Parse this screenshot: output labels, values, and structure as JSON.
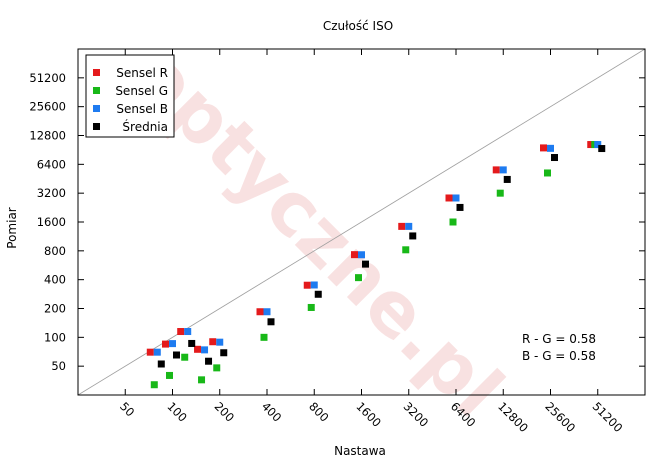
{
  "chart_data": {
    "type": "scatter",
    "title": "Czułość ISO",
    "xlabel": "Nastawa",
    "ylabel": "Pomiar",
    "x_scale": "log2",
    "y_scale": "log2",
    "xlim": [
      25,
      102400
    ],
    "ylim": [
      25,
      102400
    ],
    "x_ticks": [
      50,
      100,
      200,
      400,
      800,
      1600,
      3200,
      6400,
      12800,
      25600,
      51200
    ],
    "x_tick_labels": [
      "50",
      "100",
      "200",
      "400",
      "800",
      "1600",
      "3200",
      "6400",
      "12800",
      "25600",
      "51200"
    ],
    "y_ticks": [
      50,
      100,
      200,
      400,
      800,
      1600,
      3200,
      6400,
      12800,
      25600,
      51200
    ],
    "y_tick_labels": [
      "50",
      "100",
      "200",
      "400",
      "800",
      "1600",
      "3200",
      "6400",
      "12800",
      "25600",
      "51200"
    ],
    "reference_line": "y = x",
    "legend_position": "top-left",
    "annotations": [
      "R - G = 0.58",
      "B - G = 0.58"
    ],
    "watermark": "optyczne.pl",
    "series": [
      {
        "name": "Sensel R",
        "color": "#e41a1c",
        "x": [
          80,
          100,
          125,
          160,
          200,
          400,
          800,
          1600,
          3200,
          6400,
          12800,
          25600,
          51200
        ],
        "y": [
          70,
          85,
          115,
          75,
          90,
          185,
          350,
          730,
          1440,
          2850,
          5600,
          9500,
          10300
        ]
      },
      {
        "name": "Sensel G",
        "color": "#18b818",
        "x": [
          80,
          100,
          125,
          160,
          200,
          400,
          800,
          1600,
          3200,
          6400,
          12800,
          25600,
          51200
        ],
        "y": [
          32,
          40,
          62,
          36,
          48,
          100,
          205,
          420,
          820,
          1600,
          3200,
          5200,
          10300
        ]
      },
      {
        "name": "Sensel B",
        "color": "#1e7bf0",
        "x": [
          80,
          100,
          125,
          160,
          200,
          400,
          800,
          1600,
          3200,
          6400,
          12800,
          25600,
          51200
        ],
        "y": [
          70,
          86,
          115,
          74,
          89,
          185,
          352,
          728,
          1440,
          2850,
          5600,
          9400,
          10300
        ]
      },
      {
        "name": "Średnia",
        "color": "#000000",
        "x": [
          80,
          100,
          125,
          160,
          200,
          400,
          800,
          1600,
          3200,
          6400,
          12800,
          25600,
          51200
        ],
        "y": [
          58,
          72,
          95,
          62,
          76,
          160,
          310,
          640,
          1260,
          2500,
          4900,
          8300,
          10300
        ]
      }
    ]
  }
}
